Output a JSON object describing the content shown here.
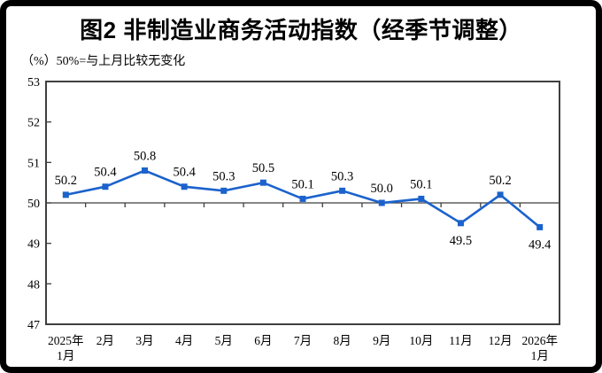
{
  "chart_data": {
    "type": "line",
    "title": "图2 非制造业商务活动指数（经季节调整）",
    "unit_note": "（%）50%=与上月比较无变化",
    "xlabel": "",
    "ylabel": "%",
    "categories": [
      "2025年\n1月",
      "2月",
      "3月",
      "4月",
      "5月",
      "6月",
      "7月",
      "8月",
      "9月",
      "10月",
      "11月",
      "12月",
      "2026年\n1月"
    ],
    "values": [
      50.2,
      50.4,
      50.8,
      50.4,
      50.3,
      50.5,
      50.1,
      50.3,
      50.0,
      50.1,
      49.5,
      50.2,
      49.4
    ],
    "ylim": [
      47,
      53
    ],
    "y_ticks": [
      47,
      48,
      49,
      50,
      51,
      52,
      53
    ],
    "reference_line": 50,
    "grid": "off",
    "legend": "none",
    "colors": {
      "series_line": "#1B62CC",
      "marker": "#1B62CC",
      "frame": "#3F3F3F",
      "text": "#000000",
      "background": "#FFFFFF"
    }
  }
}
